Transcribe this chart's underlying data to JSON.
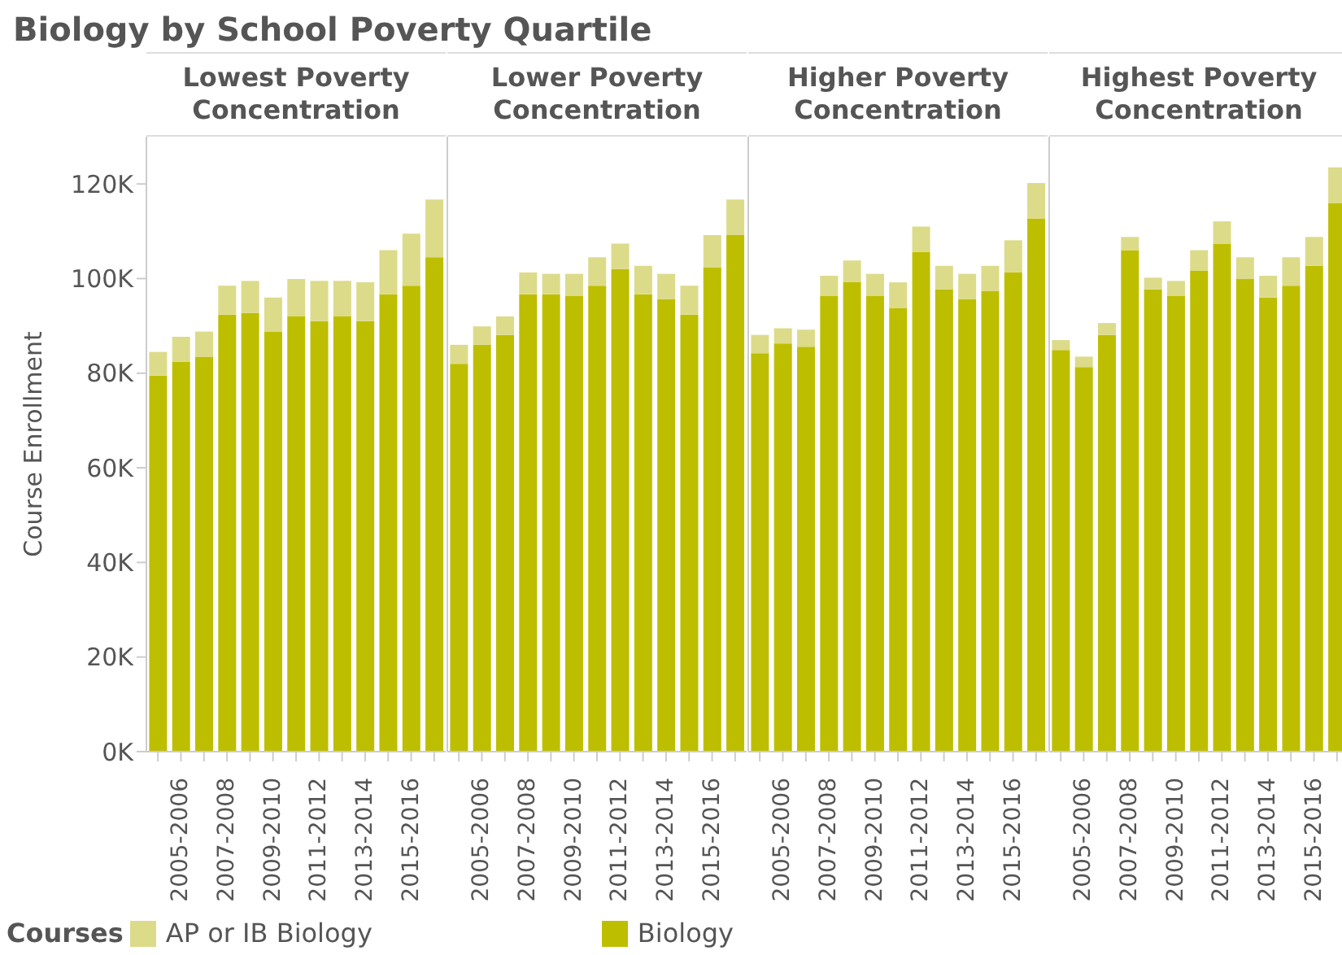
{
  "chart_data": [
    {
      "type": "bar",
      "title": "Biology by School Poverty Quartile",
      "subtitle": "Lowest Poverty Concentration",
      "ylabel": "Course Enrollment",
      "legend_title": "Courses",
      "legend": "bottom",
      "stacked": true,
      "categories": [
        null,
        "2005-2006",
        null,
        "2007-2008",
        null,
        "2009-2010",
        null,
        "2011-2012",
        null,
        "2013-2014",
        null,
        "2015-2016",
        null
      ],
      "ylim": [
        0,
        130000
      ],
      "yticks": [
        {
          "value": 0,
          "label": "0K"
        },
        {
          "value": 20000,
          "label": "20K"
        },
        {
          "value": 40000,
          "label": "40K"
        },
        {
          "value": 60000,
          "label": "60K"
        },
        {
          "value": 80000,
          "label": "80K"
        },
        {
          "value": 100000,
          "label": "100K"
        },
        {
          "value": 120000,
          "label": "120K"
        }
      ],
      "series": [
        {
          "name": "Biology",
          "color": "#bebe00",
          "values": [
            79500,
            82400,
            83500,
            92400,
            92700,
            88800,
            92000,
            91000,
            92000,
            91000,
            96700,
            98500,
            104500
          ]
        },
        {
          "name": "AP or IB Biology",
          "color": "#dcdb8a",
          "values": [
            5000,
            5300,
            5300,
            6100,
            6800,
            7200,
            7900,
            8500,
            7500,
            8200,
            9300,
            11000,
            12200
          ]
        }
      ]
    },
    {
      "type": "bar",
      "subtitle": "Lower Poverty Concentration",
      "stacked": true,
      "tick_labels": "x",
      "categories": [
        null,
        "2005-2006",
        null,
        "2007-2008",
        null,
        "2009-2010",
        null,
        "2011-2012",
        null,
        "2013-2014",
        null,
        "2015-2016",
        null
      ],
      "ylim": [
        0,
        130000
      ],
      "series": [
        {
          "color": "#bebe00",
          "values": [
            82000,
            86000,
            88100,
            96700,
            96700,
            96300,
            98500,
            102000,
            96700,
            95600,
            92400,
            102400,
            109200
          ]
        },
        {
          "color": "#dcdb8a",
          "values": [
            4000,
            3900,
            3900,
            4600,
            4300,
            4700,
            6000,
            5400,
            6000,
            5400,
            6100,
            6800,
            7500
          ]
        }
      ]
    },
    {
      "type": "bar",
      "subtitle": "Higher Poverty Concentration",
      "stacked": true,
      "tick_labels": "x",
      "categories": [
        null,
        "2005-2006",
        null,
        "2007-2008",
        null,
        "2009-2010",
        null,
        "2011-2012",
        null,
        "2013-2014",
        null,
        "2015-2016",
        null
      ],
      "ylim": [
        0,
        130000
      ],
      "series": [
        {
          "color": "#bebe00",
          "values": [
            84200,
            86300,
            85600,
            96300,
            99200,
            96300,
            93800,
            105600,
            97700,
            95600,
            97400,
            101300,
            112700
          ]
        },
        {
          "color": "#dcdb8a",
          "values": [
            3900,
            3200,
            3600,
            4300,
            4600,
            4700,
            5400,
            5400,
            5000,
            5400,
            5300,
            6800,
            7500
          ]
        }
      ]
    },
    {
      "type": "bar",
      "subtitle": "Highest Poverty Concentration",
      "stacked": true,
      "tick_labels": "x",
      "categories": [
        null,
        "2005-2006",
        null,
        "2007-2008",
        null,
        "2009-2010",
        null,
        "2011-2012",
        null,
        "2013-2014",
        null,
        "2015-2016",
        null
      ],
      "ylim": [
        0,
        130000
      ],
      "series": [
        {
          "color": "#bebe00",
          "values": [
            84900,
            81300,
            88100,
            106000,
            97700,
            96300,
            101700,
            107400,
            99900,
            96000,
            98500,
            102700,
            116000
          ]
        },
        {
          "color": "#dcdb8a",
          "values": [
            2100,
            2200,
            2500,
            2800,
            2500,
            3200,
            4300,
            4700,
            4600,
            4600,
            6000,
            6100,
            7500
          ]
        }
      ]
    }
  ]
}
